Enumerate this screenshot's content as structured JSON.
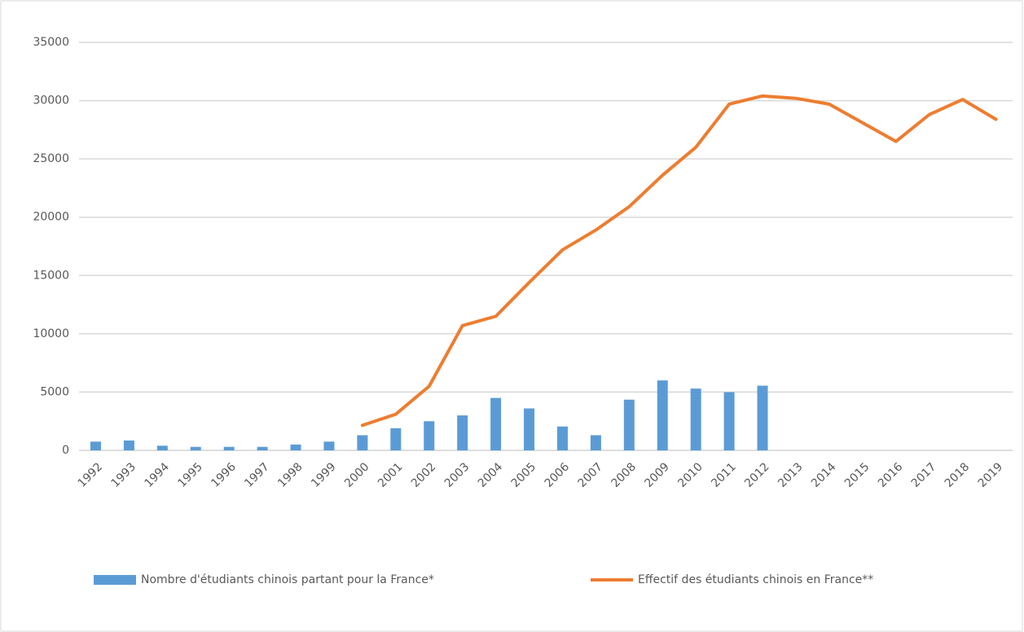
{
  "chart_data": {
    "type": "bar-line",
    "categories": [
      "1992",
      "1993",
      "1994",
      "1995",
      "1996",
      "1997",
      "1998",
      "1999",
      "2000",
      "2001",
      "2002",
      "2003",
      "2004",
      "2005",
      "2006",
      "2007",
      "2008",
      "2009",
      "2010",
      "2011",
      "2012",
      "2013",
      "2014",
      "2015",
      "2016",
      "2017",
      "2018",
      "2019"
    ],
    "series": [
      {
        "name": "Nombre d'étudiants chinois partant pour la France*",
        "type": "bar",
        "color": "#5b9bd5",
        "values": [
          750,
          850,
          400,
          300,
          300,
          300,
          500,
          750,
          1300,
          1900,
          2500,
          3000,
          4500,
          3600,
          2050,
          1300,
          4350,
          6000,
          5300,
          5000,
          5550,
          null,
          null,
          null,
          null,
          null,
          null,
          null
        ]
      },
      {
        "name": "Effectif des étudiants chinois en France**",
        "type": "line",
        "color": "#ed7d31",
        "values": [
          null,
          null,
          null,
          null,
          null,
          null,
          null,
          null,
          2150,
          3100,
          5500,
          10700,
          11500,
          14400,
          17200,
          18900,
          20900,
          23600,
          26000,
          29700,
          30400,
          30200,
          29700,
          28100,
          26500,
          28800,
          30100,
          28400
        ]
      }
    ],
    "ylim": [
      0,
      35000
    ],
    "yticks": [
      0,
      5000,
      10000,
      15000,
      20000,
      25000,
      30000,
      35000
    ],
    "grid": true,
    "legend": "bottom"
  }
}
